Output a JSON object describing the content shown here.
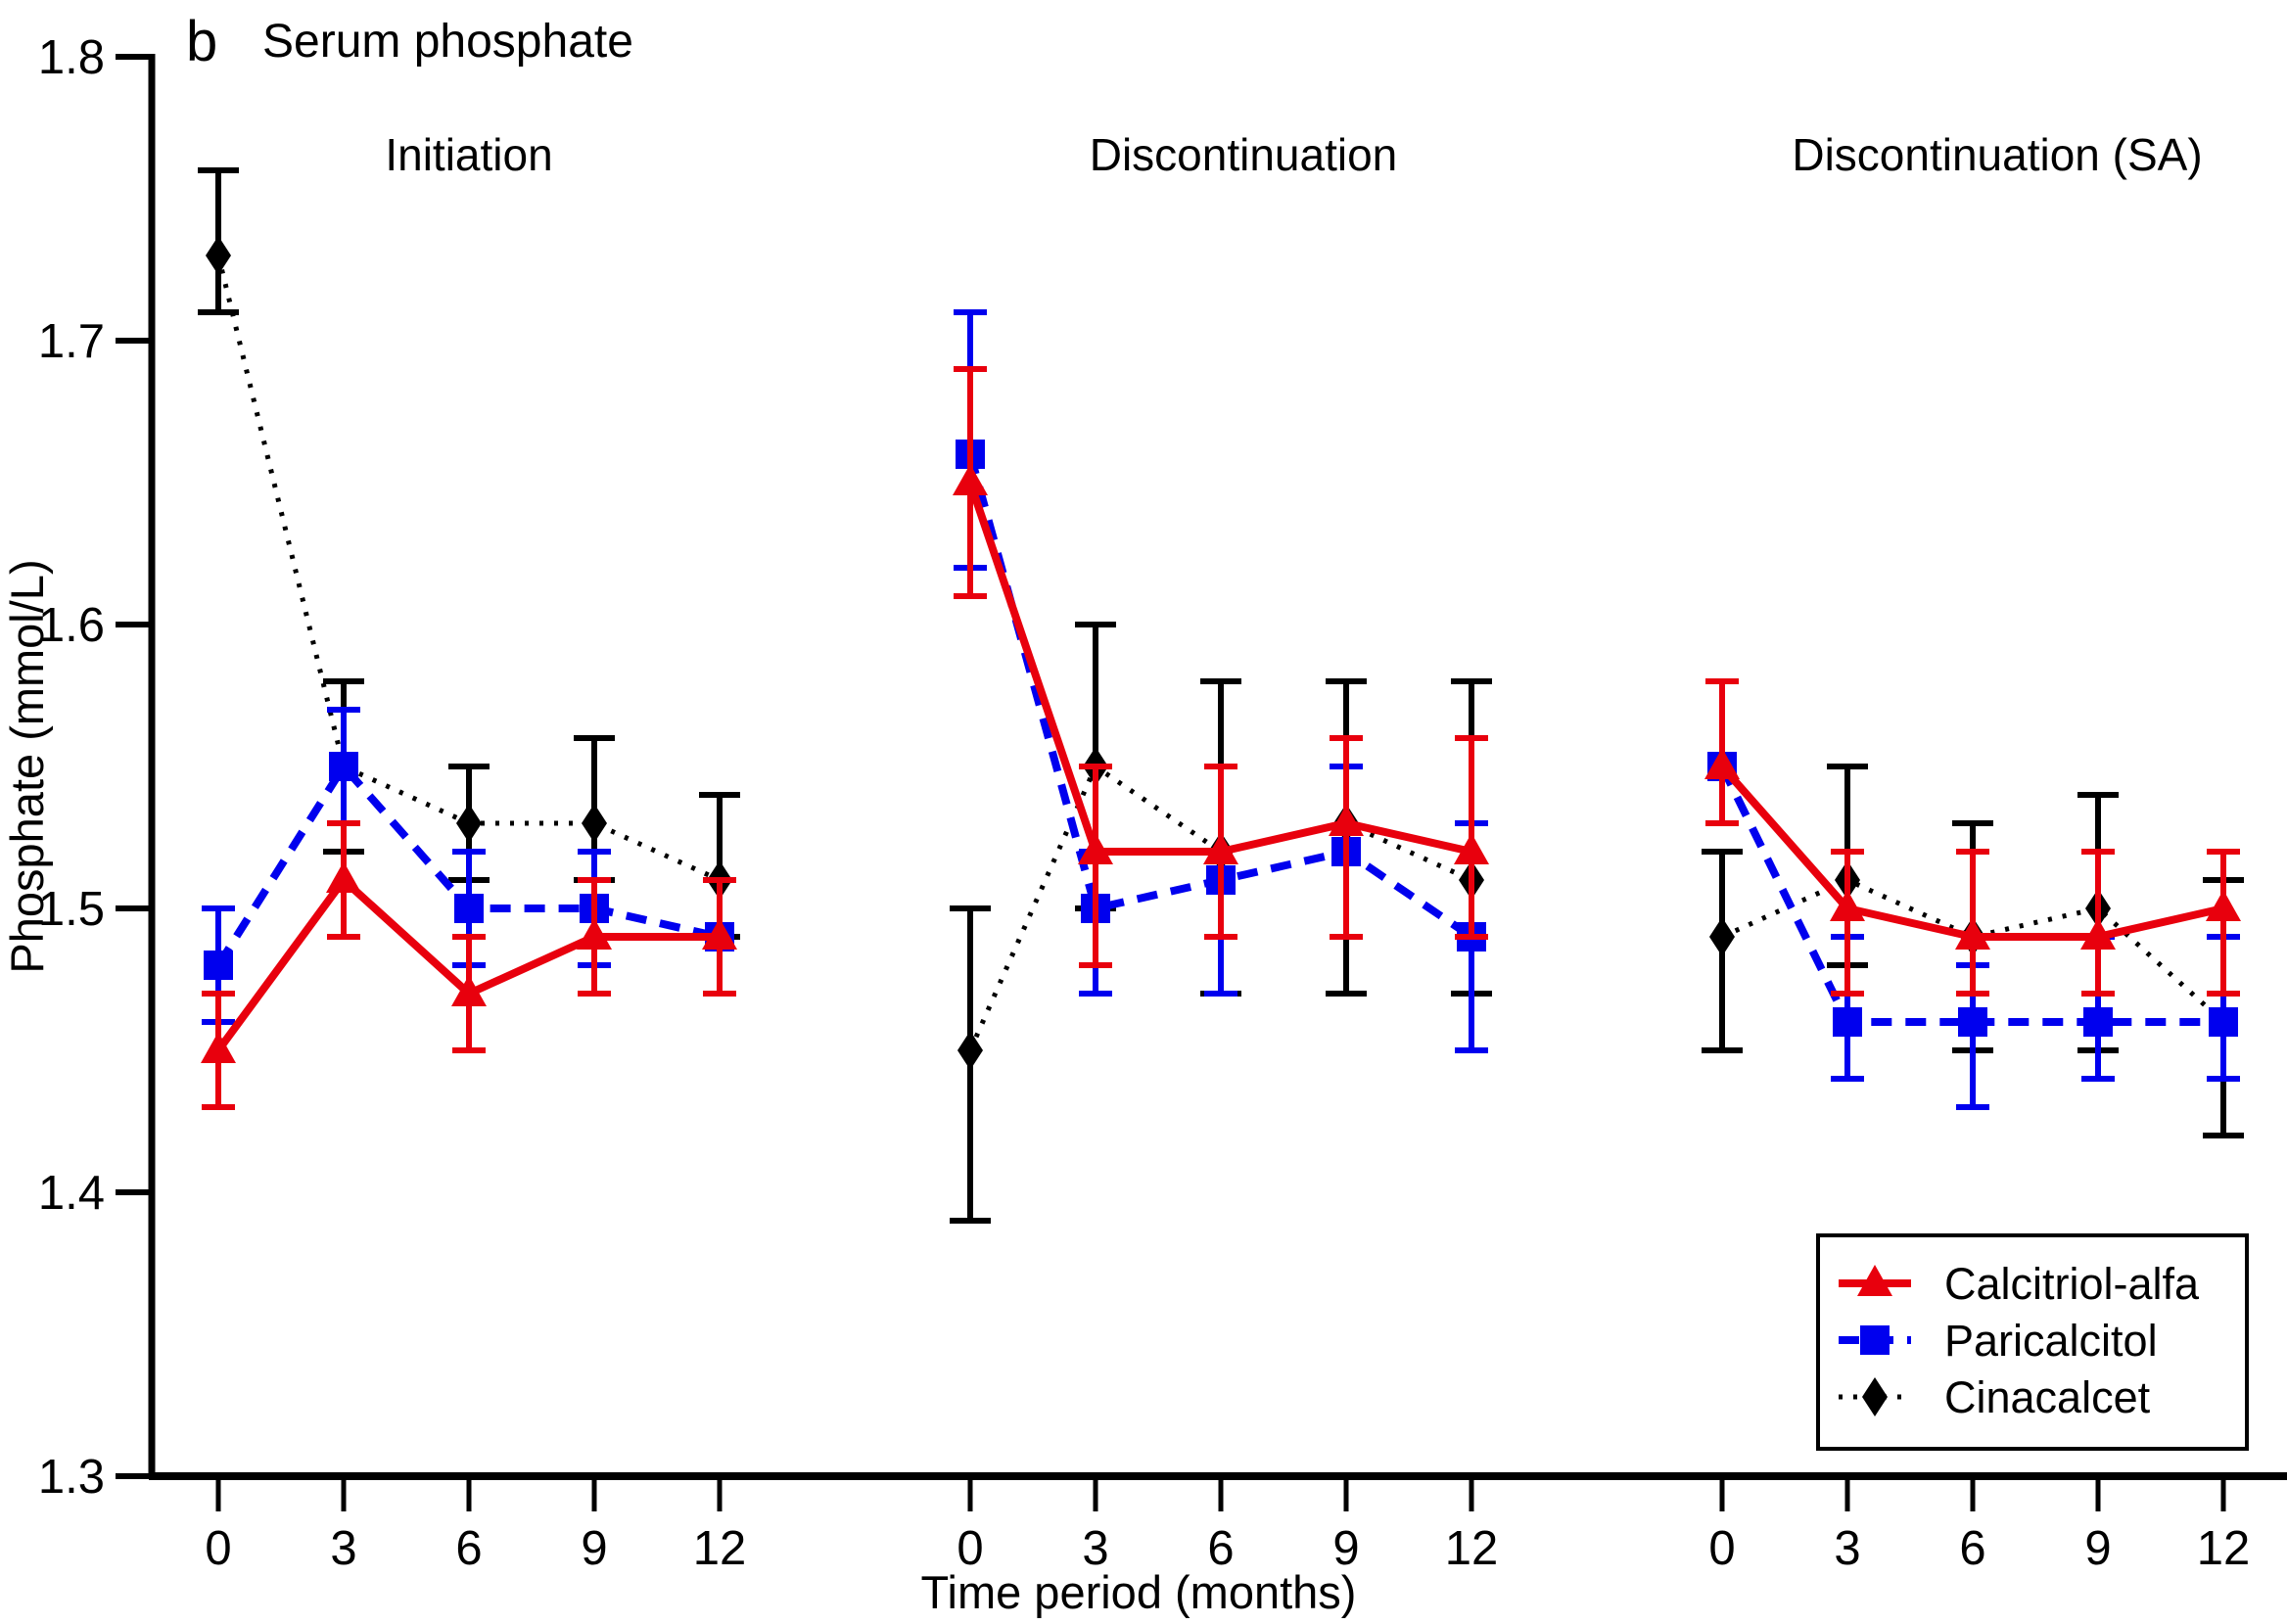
{
  "figure": {
    "panel_label": "b",
    "title": "Serum phosphate"
  },
  "chart_data": {
    "type": "line",
    "panel_label": "b",
    "title": "Serum phosphate",
    "xlabel": "Time period (months)",
    "ylabel": "Phosphate (mmol/L)",
    "ylim": [
      1.3,
      1.8
    ],
    "yticks": [
      1.8,
      1.7,
      1.6,
      1.5,
      1.4,
      1.3
    ],
    "x_months": [
      0,
      3,
      6,
      9,
      12
    ],
    "grid": "off",
    "legend_position": "bottom-right",
    "panels": [
      {
        "title": "Initiation",
        "series": [
          {
            "name": "Calcitriol-alfa",
            "values": [
              1.45,
              1.51,
              1.47,
              1.49,
              1.49
            ],
            "err_lo": [
              1.43,
              1.49,
              1.45,
              1.47,
              1.47
            ],
            "err_hi": [
              1.47,
              1.53,
              1.49,
              1.51,
              1.51
            ]
          },
          {
            "name": "Paricalcitol",
            "values": [
              1.48,
              1.55,
              1.5,
              1.5,
              1.49
            ],
            "err_lo": [
              1.46,
              1.53,
              1.48,
              1.48,
              1.47
            ],
            "err_hi": [
              1.5,
              1.57,
              1.52,
              1.52,
              1.51
            ]
          },
          {
            "name": "Cinacalcet",
            "values": [
              1.73,
              1.55,
              1.53,
              1.53,
              1.51
            ],
            "err_lo": [
              1.71,
              1.52,
              1.51,
              1.51,
              1.49
            ],
            "err_hi": [
              1.76,
              1.58,
              1.55,
              1.56,
              1.54
            ]
          }
        ]
      },
      {
        "title": "Discontinuation",
        "series": [
          {
            "name": "Calcitriol-alfa",
            "values": [
              1.65,
              1.52,
              1.52,
              1.53,
              1.52
            ],
            "err_lo": [
              1.61,
              1.48,
              1.49,
              1.49,
              1.49
            ],
            "err_hi": [
              1.69,
              1.55,
              1.55,
              1.56,
              1.56
            ]
          },
          {
            "name": "Paricalcitol",
            "values": [
              1.66,
              1.5,
              1.51,
              1.52,
              1.49
            ],
            "err_lo": [
              1.62,
              1.47,
              1.47,
              1.49,
              1.45
            ],
            "err_hi": [
              1.71,
              1.52,
              1.55,
              1.55,
              1.53
            ]
          },
          {
            "name": "Cinacalcet",
            "values": [
              1.45,
              1.55,
              1.52,
              1.53,
              1.51
            ],
            "err_lo": [
              1.39,
              1.5,
              1.47,
              1.47,
              1.47
            ],
            "err_hi": [
              1.5,
              1.6,
              1.58,
              1.58,
              1.58
            ]
          }
        ]
      },
      {
        "title": "Discontinuation (SA)",
        "series": [
          {
            "name": "Calcitriol-alfa",
            "values": [
              1.55,
              1.5,
              1.49,
              1.49,
              1.5
            ],
            "err_lo": [
              1.53,
              1.47,
              1.47,
              1.47,
              1.47
            ],
            "err_hi": [
              1.58,
              1.52,
              1.52,
              1.52,
              1.52
            ]
          },
          {
            "name": "Paricalcitol",
            "values": [
              1.55,
              1.46,
              1.46,
              1.46,
              1.46
            ],
            "err_lo": [
              1.53,
              1.44,
              1.43,
              1.44,
              1.44
            ],
            "err_hi": [
              1.58,
              1.49,
              1.48,
              1.49,
              1.49
            ]
          },
          {
            "name": "Cinacalcet",
            "values": [
              1.49,
              1.51,
              1.49,
              1.5,
              1.46
            ],
            "err_lo": [
              1.45,
              1.48,
              1.45,
              1.45,
              1.42
            ],
            "err_hi": [
              1.52,
              1.55,
              1.53,
              1.54,
              1.51
            ]
          }
        ]
      }
    ],
    "legend": [
      {
        "label": "Calcitriol-alfa",
        "color": "#e8000d",
        "marker": "triangle",
        "line": "solid"
      },
      {
        "label": "Paricalcitol",
        "color": "#0000ee",
        "marker": "square",
        "line": "dashed"
      },
      {
        "label": "Cinacalcet",
        "color": "#000000",
        "marker": "diamond",
        "line": "dotted"
      }
    ],
    "axis_color": "#000000"
  }
}
